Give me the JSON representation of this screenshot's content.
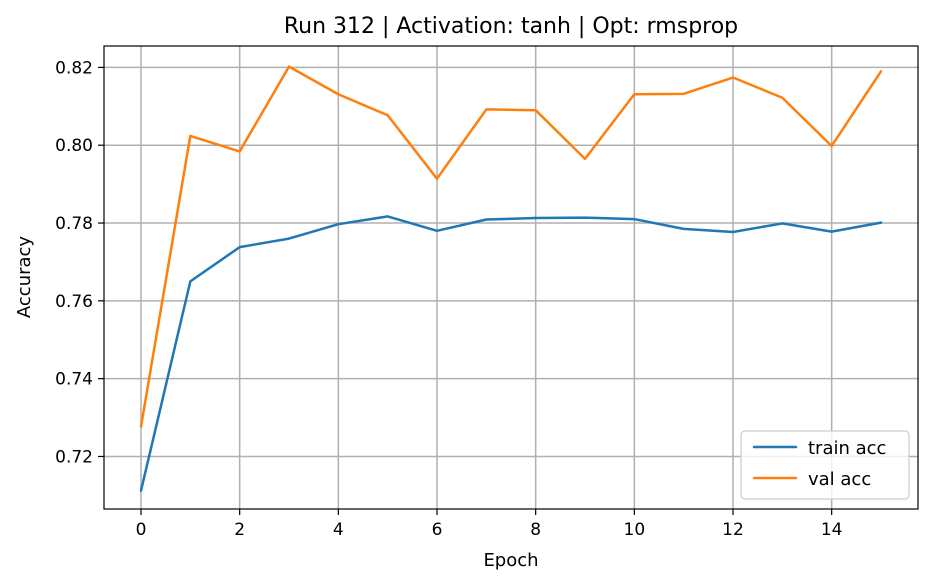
{
  "chart_data": {
    "type": "line",
    "title": "Run 312 | Activation: tanh | Opt: rmsprop",
    "xlabel": "Epoch",
    "ylabel": "Accuracy",
    "x": [
      0,
      1,
      2,
      3,
      4,
      5,
      6,
      7,
      8,
      9,
      10,
      11,
      12,
      13,
      14,
      15
    ],
    "xlim": [
      -0.75,
      15.75
    ],
    "ylim": [
      0.7065,
      0.8255
    ],
    "xticks": [
      0,
      2,
      4,
      6,
      8,
      10,
      12,
      14
    ],
    "yticks": [
      0.72,
      0.74,
      0.76,
      0.78,
      0.8,
      0.82
    ],
    "xtick_labels": [
      "0",
      "2",
      "4",
      "6",
      "8",
      "10",
      "12",
      "14"
    ],
    "ytick_labels": [
      "0.72",
      "0.74",
      "0.76",
      "0.78",
      "0.80",
      "0.82"
    ],
    "grid": true,
    "legend_position": "lower-right",
    "series": [
      {
        "name": "train acc",
        "color": "#1f77b4",
        "values": [
          0.7112,
          0.765,
          0.7738,
          0.776,
          0.7797,
          0.7817,
          0.778,
          0.7809,
          0.7813,
          0.7814,
          0.781,
          0.7785,
          0.7777,
          0.7799,
          0.7778,
          0.7801
        ]
      },
      {
        "name": "val acc",
        "color": "#ff7f0e",
        "values": [
          0.7277,
          0.8024,
          0.7984,
          0.8202,
          0.8131,
          0.8077,
          0.7914,
          0.8092,
          0.809,
          0.7965,
          0.8131,
          0.8132,
          0.8174,
          0.8122,
          0.7998,
          0.819
        ]
      }
    ]
  }
}
